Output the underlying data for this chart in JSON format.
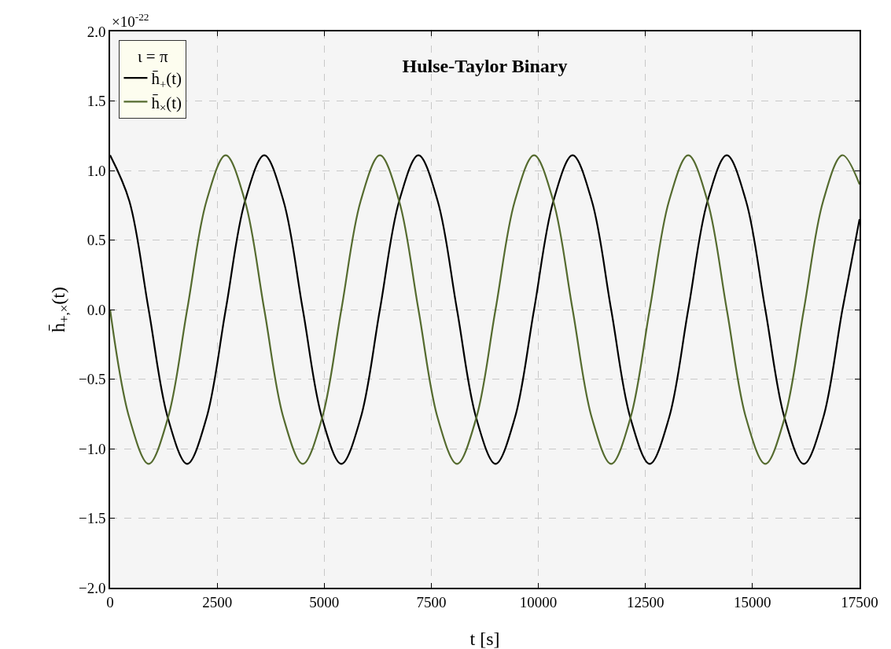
{
  "chart_data": {
    "type": "line",
    "title": "Hulse-Taylor Binary",
    "xlabel": "t [s]",
    "ylabel": "h̄$_{+,×}$(t)",
    "legend_title": "ι = π",
    "annotations": [
      "×10$^{-22}$"
    ],
    "x": [
      0,
      450,
      900,
      1350,
      1800,
      2250,
      2700,
      3150,
      3600,
      4050,
      4500,
      4950,
      5400,
      5850,
      6300,
      6750,
      7200,
      7650,
      8100,
      8550,
      9000,
      9450,
      9900,
      10350,
      10800,
      11250,
      11700,
      12150,
      12600,
      13050,
      13500,
      13950,
      14400,
      14850,
      15300,
      15750,
      16200,
      16650,
      17100,
      17500
    ],
    "series": [
      {
        "name": "h̄$_{+}$(t)",
        "color": "#000000",
        "values": [
          1.11,
          0.78,
          0,
          -0.78,
          -1.11,
          -0.78,
          0,
          0.78,
          1.11,
          0.78,
          0,
          -0.78,
          -1.11,
          -0.78,
          0,
          0.78,
          1.11,
          0.78,
          0,
          -0.78,
          -1.11,
          -0.78,
          0,
          0.78,
          1.11,
          0.78,
          0,
          -0.78,
          -1.11,
          -0.78,
          0,
          0.78,
          1.11,
          0.78,
          0,
          -0.78,
          -1.11,
          -0.78,
          0,
          0.65
        ]
      },
      {
        "name": "h̄$_{×}$(t)",
        "color": "#556b2f",
        "values": [
          0,
          -0.78,
          -1.11,
          -0.78,
          0,
          0.78,
          1.11,
          0.78,
          0,
          -0.78,
          -1.11,
          -0.78,
          0,
          0.78,
          1.11,
          0.78,
          0,
          -0.78,
          -1.11,
          -0.78,
          0,
          0.78,
          1.11,
          0.78,
          0,
          -0.78,
          -1.11,
          -0.78,
          0,
          0.78,
          1.11,
          0.78,
          0,
          -0.78,
          -1.11,
          -0.78,
          0,
          0.78,
          1.11,
          0.9
        ]
      }
    ],
    "xlim": [
      0,
      17500
    ],
    "xticks": [
      0,
      2500,
      5000,
      7500,
      10000,
      12500,
      15000,
      17500
    ],
    "ylim": [
      -2,
      2
    ],
    "yticks": [
      {
        "value": -2,
        "label": "−2.0"
      },
      {
        "value": -1.5,
        "label": "−1.5"
      },
      {
        "value": -1,
        "label": "−1.0"
      },
      {
        "value": -0.5,
        "label": "−0.5"
      },
      {
        "value": 0,
        "label": "0.0"
      },
      {
        "value": 0.5,
        "label": "0.5"
      },
      {
        "value": 1,
        "label": "1.0"
      },
      {
        "value": 1.5,
        "label": "1.5"
      },
      {
        "value": 2,
        "label": "2.0"
      }
    ],
    "grid": true,
    "legend": "top left",
    "line_style": "solid"
  }
}
